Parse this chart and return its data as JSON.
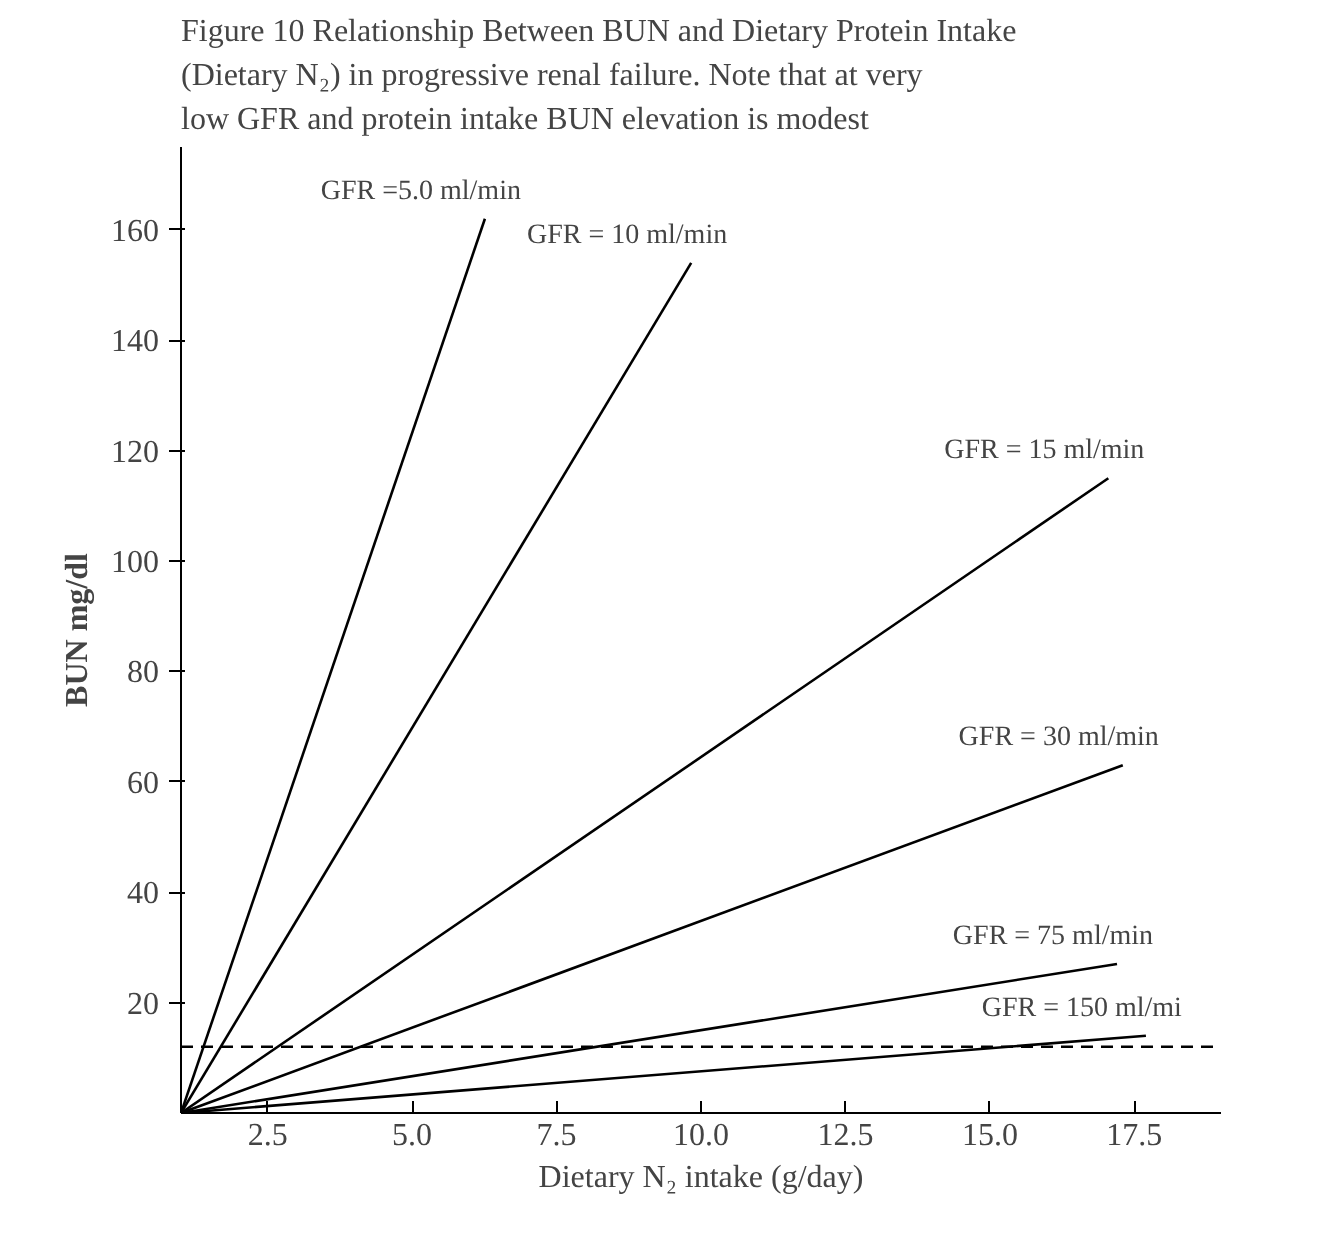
{
  "chart_data": {
    "type": "line",
    "title": "Figure 10 Relationship Between BUN and Dietary Protein Intake (Dietary N₂) in progressive renal failure. Note that at very low GFR and protein intake BUN elevation is modest",
    "xlabel": "Dietary N₂ intake (g/day)",
    "ylabel": "BUN mg/dl",
    "xlim": [
      1,
      19
    ],
    "ylim": [
      0,
      175
    ],
    "xticks": [
      {
        "value": 2.5,
        "label": "2.5"
      },
      {
        "value": 5,
        "label": "5.0"
      },
      {
        "value": 7.5,
        "label": "7.5"
      },
      {
        "value": 10,
        "label": "10.0"
      },
      {
        "value": 12.5,
        "label": "12.5"
      },
      {
        "value": 15,
        "label": "15.0"
      },
      {
        "value": 17.5,
        "label": "17.5"
      }
    ],
    "yticks": [
      20,
      40,
      60,
      80,
      100,
      120,
      140,
      160
    ],
    "grid": false,
    "marker": "none",
    "line_style": "solid",
    "series": [
      {
        "name": "GFR =5.0 ml/min",
        "color": "#000000",
        "x": [
          1,
          6.26
        ],
        "values": [
          0,
          162
        ]
      },
      {
        "name": "GFR = 10 ml/min",
        "color": "#000000",
        "x": [
          1,
          9.83
        ],
        "values": [
          0,
          154
        ]
      },
      {
        "name": "GFR = 15 ml/min",
        "color": "#000000",
        "x": [
          1,
          17.05
        ],
        "values": [
          0,
          115
        ]
      },
      {
        "name": "GFR = 30 ml/min",
        "color": "#000000",
        "x": [
          1,
          17.3
        ],
        "values": [
          0,
          63
        ]
      },
      {
        "name": "GFR = 75 ml/min",
        "color": "#000000",
        "x": [
          1,
          17.2
        ],
        "values": [
          0,
          27
        ]
      },
      {
        "name": "GFR = 150 ml/mi",
        "color": "#000000",
        "x": [
          1,
          17.7
        ],
        "values": [
          0,
          14
        ]
      }
    ],
    "ref_lines": [
      {
        "axis": "y",
        "value": 12,
        "color": "#000000",
        "line_style": "dashed"
      }
    ]
  }
}
